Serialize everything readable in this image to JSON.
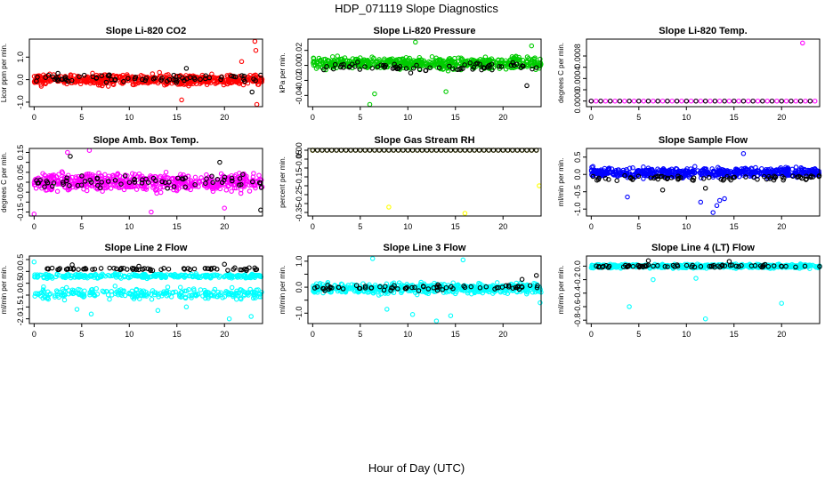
{
  "figure": {
    "title": "HDP_071119  Slope Diagnostics",
    "xlabel": "Hour of Day (UTC)"
  },
  "chart_data": [
    {
      "type": "scatter",
      "title": "Slope Li-820 CO2",
      "ylabel": "Licor ppm per min.",
      "xlim": [
        -0.5,
        24
      ],
      "ylim": [
        -1.2,
        1.8
      ],
      "xticks": [
        0,
        5,
        10,
        15,
        20
      ],
      "xticklabels": [
        "0",
        "5",
        "10",
        "15",
        "20"
      ],
      "yticks": [
        -1.0,
        0.0,
        1.0
      ],
      "yticklabels": [
        "-1.0",
        "0.0",
        "1.0"
      ],
      "series": [
        {
          "color": "#ff0000",
          "kind": "band",
          "center": 0.0,
          "spread": 0.35,
          "count": 560,
          "points": [
            [
              23.2,
              1.7
            ],
            [
              23.3,
              1.3
            ],
            [
              23.4,
              -1.1
            ],
            [
              21.8,
              0.8
            ],
            [
              15.5,
              -0.9
            ]
          ]
        },
        {
          "color": "#000000",
          "kind": "band",
          "center": 0.05,
          "spread": 0.25,
          "count": 70,
          "points": [
            [
              22.9,
              -0.55
            ],
            [
              16.0,
              0.5
            ],
            [
              23.8,
              0.2
            ]
          ]
        }
      ]
    },
    {
      "type": "scatter",
      "title": "Slope Li-820 Pressure",
      "ylabel": "kPa per min.",
      "xlim": [
        -0.5,
        24
      ],
      "ylim": [
        -0.055,
        0.035
      ],
      "xticks": [
        0,
        5,
        10,
        15,
        20
      ],
      "xticklabels": [
        "0",
        "5",
        "10",
        "15",
        "20"
      ],
      "yticks": [
        -0.04,
        -0.02,
        0.0,
        0.02
      ],
      "yticklabels": [
        "-0.04",
        "-0.02",
        "0.00",
        "0.02"
      ],
      "series": [
        {
          "color": "#00cc00",
          "kind": "band",
          "center": 0.003,
          "spread": 0.011,
          "count": 560,
          "points": [
            [
              6.0,
              -0.052
            ],
            [
              10.8,
              0.031
            ],
            [
              23.0,
              0.026
            ],
            [
              6.5,
              -0.038
            ],
            [
              14.0,
              -0.035
            ]
          ]
        },
        {
          "color": "#000000",
          "kind": "band",
          "center": -0.002,
          "spread": 0.007,
          "count": 70,
          "points": [
            [
              22.5,
              -0.027
            ],
            [
              10.3,
              -0.01
            ]
          ]
        }
      ]
    },
    {
      "type": "scatter",
      "title": "Slope Li-820 Temp.",
      "ylabel": "degrees C per min.",
      "xlim": [
        -0.5,
        24
      ],
      "ylim": [
        -0.0001,
        0.0011
      ],
      "xticks": [
        0,
        5,
        10,
        15,
        20
      ],
      "xticklabels": [
        "0",
        "5",
        "10",
        "15",
        "20"
      ],
      "yticks": [
        0.0,
        0.0002,
        0.0004,
        0.0006,
        0.0008
      ],
      "yticklabels": [
        "0.0000",
        "",
        "0.0004",
        "",
        "0.0008"
      ],
      "series": [
        {
          "color": "#ff00ff",
          "kind": "flat",
          "center": 0.0,
          "count": 48,
          "points": [
            [
              22.2,
              0.00103
            ]
          ]
        },
        {
          "color": "#000000",
          "kind": "flat",
          "center": 0.0,
          "count": 24,
          "points": []
        }
      ]
    },
    {
      "type": "scatter",
      "title": "Slope Amb. Box Temp.",
      "ylabel": "degrees C per min.",
      "xlim": [
        -0.5,
        24
      ],
      "ylim": [
        -0.17,
        0.17
      ],
      "xticks": [
        0,
        5,
        10,
        15,
        20
      ],
      "xticklabels": [
        "0",
        "5",
        "10",
        "15",
        "20"
      ],
      "yticks": [
        -0.15,
        -0.1,
        -0.05,
        0.0,
        0.05,
        0.1,
        0.15
      ],
      "yticklabels": [
        "-0.15",
        "",
        "-0.05",
        "",
        "0.05",
        "",
        "0.15"
      ],
      "series": [
        {
          "color": "#ff00ff",
          "kind": "band",
          "center": 0.0,
          "spread": 0.06,
          "count": 560,
          "points": [
            [
              0.0,
              -0.16
            ],
            [
              3.5,
              0.15
            ],
            [
              5.8,
              0.16
            ],
            [
              12.3,
              -0.15
            ],
            [
              20.0,
              -0.13
            ]
          ]
        },
        {
          "color": "#000000",
          "kind": "band",
          "center": 0.0,
          "spread": 0.045,
          "count": 70,
          "points": [
            [
              3.8,
              0.13
            ],
            [
              23.8,
              -0.14
            ],
            [
              19.5,
              0.1
            ]
          ]
        }
      ]
    },
    {
      "type": "scatter",
      "title": "Slope Gas Stream RH",
      "ylabel": "percent per min.",
      "xlim": [
        -0.5,
        24
      ],
      "ylim": [
        -0.37,
        0.01
      ],
      "xticks": [
        0,
        5,
        10,
        15,
        20
      ],
      "xticklabels": [
        "0",
        "5",
        "10",
        "15",
        "20"
      ],
      "yticks": [
        -0.35,
        -0.3,
        -0.25,
        -0.2,
        -0.15,
        -0.1,
        -0.05,
        0.0
      ],
      "yticklabels": [
        "-0.35",
        "",
        "-0.25",
        "",
        "-0.15",
        "",
        "-0.05",
        "0.00"
      ],
      "series": [
        {
          "color": "#ffff00",
          "kind": "flat",
          "center": 0.0,
          "count": 48,
          "points": [
            [
              23.8,
              -0.2
            ],
            [
              8.0,
              -0.32
            ],
            [
              16.0,
              -0.355
            ],
            [
              0.0,
              0.0
            ]
          ]
        },
        {
          "color": "#000000",
          "kind": "flat",
          "center": 0.0,
          "count": 48,
          "points": []
        }
      ]
    },
    {
      "type": "scatter",
      "title": "Slope Sample Flow",
      "ylabel": "ml/min per min.",
      "xlim": [
        -0.5,
        24
      ],
      "ylim": [
        -1.2,
        0.75
      ],
      "xticks": [
        0,
        5,
        10,
        15,
        20
      ],
      "xticklabels": [
        "0",
        "5",
        "10",
        "15",
        "20"
      ],
      "yticks": [
        -1.0,
        -0.5,
        0.0,
        0.5
      ],
      "yticklabels": [
        "-1.0",
        "-0.5",
        "0.0",
        "0.5"
      ],
      "series": [
        {
          "color": "#0000ff",
          "kind": "band",
          "center": 0.05,
          "spread": 0.2,
          "count": 560,
          "points": [
            [
              12.8,
              -1.1
            ],
            [
              13.2,
              -0.9
            ],
            [
              11.5,
              -0.8
            ],
            [
              13.5,
              -0.75
            ],
            [
              14.0,
              -0.7
            ],
            [
              3.8,
              -0.65
            ],
            [
              16.0,
              0.6
            ]
          ]
        },
        {
          "color": "#000000",
          "kind": "band",
          "center": -0.1,
          "spread": 0.12,
          "count": 70,
          "points": [
            [
              7.5,
              -0.45
            ],
            [
              12.0,
              -0.4
            ]
          ]
        }
      ]
    },
    {
      "type": "scatter",
      "title": "Slope Line 2 Flow",
      "ylabel": "ml/min per min.",
      "xlim": [
        -0.5,
        24
      ],
      "ylim": [
        -2.2,
        0.65
      ],
      "xticks": [
        0,
        5,
        10,
        15,
        20
      ],
      "xticklabels": [
        "0",
        "5",
        "10",
        "15",
        "20"
      ],
      "yticks": [
        -2.0,
        -1.5,
        -1.0,
        -0.5,
        0.0,
        0.5
      ],
      "yticklabels": [
        "-2.0",
        "-1.5",
        "-1.0",
        "-0.5",
        "0.0",
        "0.5"
      ],
      "series": [
        {
          "color": "#00ffff",
          "kind": "band",
          "center": -0.2,
          "spread": 0.12,
          "count": 300,
          "points": [
            [
              0.0,
              0.4
            ],
            [
              20.5,
              -2.0
            ],
            [
              22.8,
              -1.9
            ],
            [
              6.0,
              -1.8
            ],
            [
              16.0,
              -1.5
            ]
          ]
        },
        {
          "color": "#00ffff",
          "kind": "band",
          "center": -0.95,
          "spread": 0.35,
          "count": 260,
          "points": [
            [
              4.5,
              -1.6
            ],
            [
              13.0,
              -1.65
            ]
          ]
        },
        {
          "color": "#000000",
          "kind": "band",
          "center": 0.1,
          "spread": 0.08,
          "count": 70,
          "points": [
            [
              4.0,
              0.28
            ],
            [
              20.0,
              0.3
            ],
            [
              11.0,
              0.22
            ]
          ]
        }
      ]
    },
    {
      "type": "scatter",
      "title": "Slope Line 3 Flow",
      "ylabel": "ml/min per min.",
      "xlim": [
        -0.5,
        24
      ],
      "ylim": [
        -1.4,
        1.2
      ],
      "xticks": [
        0,
        5,
        10,
        15,
        20
      ],
      "xticklabels": [
        "0",
        "5",
        "10",
        "15",
        "20"
      ],
      "yticks": [
        -1.0,
        -0.5,
        0.0,
        0.5,
        1.0
      ],
      "yticklabels": [
        "-1.0",
        "",
        "0.0",
        "",
        "1.0"
      ],
      "series": [
        {
          "color": "#00ffff",
          "kind": "band",
          "center": -0.05,
          "spread": 0.28,
          "count": 560,
          "points": [
            [
              6.3,
              1.1
            ],
            [
              13.0,
              -1.3
            ],
            [
              10.5,
              -1.05
            ],
            [
              14.5,
              -1.1
            ],
            [
              7.8,
              -0.85
            ],
            [
              15.8,
              1.05
            ],
            [
              23.9,
              -0.6
            ]
          ]
        },
        {
          "color": "#000000",
          "kind": "band",
          "center": -0.02,
          "spread": 0.15,
          "count": 70,
          "points": [
            [
              23.5,
              0.45
            ],
            [
              22.0,
              0.3
            ]
          ]
        }
      ]
    },
    {
      "type": "scatter",
      "title": "Slope Line 4 (LT) Flow",
      "ylabel": "ml/min per min.",
      "xlim": [
        -0.5,
        24
      ],
      "ylim": [
        -0.85,
        0.15
      ],
      "xticks": [
        0,
        5,
        10,
        15,
        20
      ],
      "xticklabels": [
        "0",
        "5",
        "10",
        "15",
        "20"
      ],
      "yticks": [
        -0.8,
        -0.6,
        -0.4,
        -0.2,
        0.0
      ],
      "yticklabels": [
        "-0.8",
        "-0.6",
        "-0.4",
        "-0.2",
        "0.0"
      ],
      "series": [
        {
          "color": "#00ffff",
          "kind": "band",
          "center": 0.0,
          "spread": 0.04,
          "count": 560,
          "points": [
            [
              4.0,
              -0.6
            ],
            [
              12.0,
              -0.78
            ],
            [
              20.0,
              -0.55
            ],
            [
              6.5,
              -0.2
            ],
            [
              11.0,
              -0.18
            ]
          ]
        },
        {
          "color": "#000000",
          "kind": "band",
          "center": 0.0,
          "spread": 0.03,
          "count": 70,
          "points": [
            [
              6.0,
              0.08
            ],
            [
              14.5,
              0.07
            ]
          ]
        }
      ]
    }
  ]
}
